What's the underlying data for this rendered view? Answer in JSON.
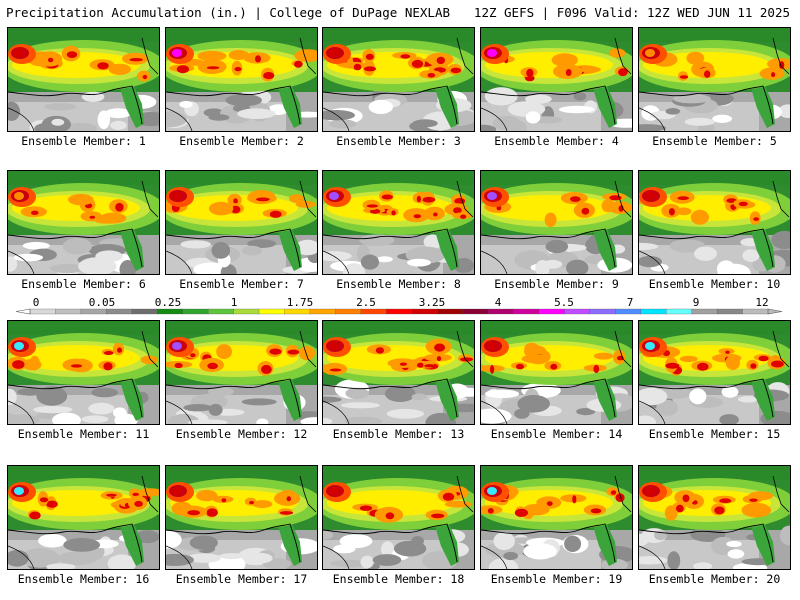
{
  "header": {
    "left": "Precipitation Accumulation (in.) | College of DuPage NEXLAB",
    "right": "12Z GEFS | F096 Valid: 12Z WED JUN 11 2025"
  },
  "members": [
    {
      "label": "Ensemble Member: 1",
      "heavy": 1,
      "west_max": "red"
    },
    {
      "label": "Ensemble Member: 2",
      "heavy": 1,
      "west_max": "magenta"
    },
    {
      "label": "Ensemble Member: 3",
      "heavy": 2,
      "west_max": "red"
    },
    {
      "label": "Ensemble Member: 4",
      "heavy": 1,
      "west_max": "magenta"
    },
    {
      "label": "Ensemble Member: 5",
      "heavy": 0,
      "west_max": "orange"
    },
    {
      "label": "Ensemble Member: 6",
      "heavy": 0,
      "west_max": "orange"
    },
    {
      "label": "Ensemble Member: 7",
      "heavy": 1,
      "west_max": "red"
    },
    {
      "label": "Ensemble Member: 8",
      "heavy": 2,
      "west_max": "purple"
    },
    {
      "label": "Ensemble Member: 9",
      "heavy": 0,
      "west_max": "purple"
    },
    {
      "label": "Ensemble Member: 10",
      "heavy": 1,
      "west_max": "red"
    },
    {
      "label": "Ensemble Member: 11",
      "heavy": 1,
      "west_max": "cyan"
    },
    {
      "label": "Ensemble Member: 12",
      "heavy": 1,
      "west_max": "purple"
    },
    {
      "label": "Ensemble Member: 13",
      "heavy": 2,
      "west_max": "red"
    },
    {
      "label": "Ensemble Member: 14",
      "heavy": 1,
      "west_max": "red"
    },
    {
      "label": "Ensemble Member: 15",
      "heavy": 2,
      "west_max": "cyan"
    },
    {
      "label": "Ensemble Member: 16",
      "heavy": 2,
      "west_max": "cyan"
    },
    {
      "label": "Ensemble Member: 17",
      "heavy": 1,
      "west_max": "red"
    },
    {
      "label": "Ensemble Member: 18",
      "heavy": 0,
      "west_max": "red"
    },
    {
      "label": "Ensemble Member: 19",
      "heavy": 2,
      "west_max": "cyan"
    },
    {
      "label": "Ensemble Member: 20",
      "heavy": 1,
      "west_max": "red"
    }
  ],
  "colorbar": {
    "labels": [
      "0",
      "0.05",
      "0.25",
      "1",
      "1.75",
      "2.5",
      "3.25",
      "4",
      "5.5",
      "7",
      "9",
      "12"
    ],
    "colors": [
      "#d8d8d8",
      "#bfbfbf",
      "#a6a6a6",
      "#8c8c8c",
      "#6e6e6e",
      "#138b13",
      "#2fa52f",
      "#5ec43c",
      "#a9dc3a",
      "#ffff00",
      "#ffd700",
      "#ffa500",
      "#ff7f00",
      "#ff4500",
      "#ff0000",
      "#d20000",
      "#a00000",
      "#8b0033",
      "#b0006e",
      "#d0009e",
      "#ff00ff",
      "#c04cff",
      "#8c6cff",
      "#4f8cff",
      "#00e5ff",
      "#66ffff",
      "#a0a0a0",
      "#888888",
      "#bbbbbb"
    ]
  }
}
